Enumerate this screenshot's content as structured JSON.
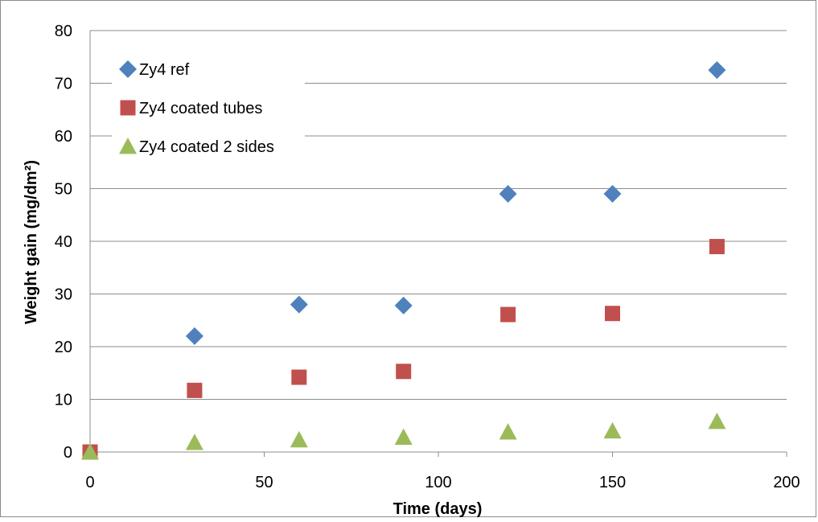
{
  "chart_data": {
    "type": "scatter",
    "title": "",
    "xlabel": "Time (days)",
    "ylabel": "Weight gain (mg/dm²)",
    "xlim": [
      0,
      200
    ],
    "ylim": [
      0,
      80
    ],
    "x_ticks": [
      0,
      50,
      100,
      150,
      200
    ],
    "y_ticks": [
      0,
      10,
      20,
      30,
      40,
      50,
      60,
      70,
      80
    ],
    "grid": {
      "horizontal": true,
      "vertical": false
    },
    "legend_position": "top-left",
    "series": [
      {
        "name": "Zy4 ref",
        "marker": "diamond",
        "color": "#4f81bd",
        "x": [
          30,
          60,
          90,
          120,
          150,
          180
        ],
        "y": [
          22,
          28,
          27.8,
          49,
          49,
          72.5
        ]
      },
      {
        "name": "Zy4 coated tubes",
        "marker": "square",
        "color": "#c0504d",
        "x": [
          0,
          30,
          60,
          90,
          120,
          150,
          180
        ],
        "y": [
          0,
          11.7,
          14.2,
          15.3,
          26.1,
          26.3,
          39
        ]
      },
      {
        "name": "Zy4 coated 2 sides",
        "marker": "triangle",
        "color": "#9bbb59",
        "x": [
          0,
          30,
          60,
          90,
          120,
          150,
          180
        ],
        "y": [
          0,
          1.8,
          2.3,
          2.8,
          3.8,
          4.0,
          5.8
        ]
      }
    ]
  }
}
